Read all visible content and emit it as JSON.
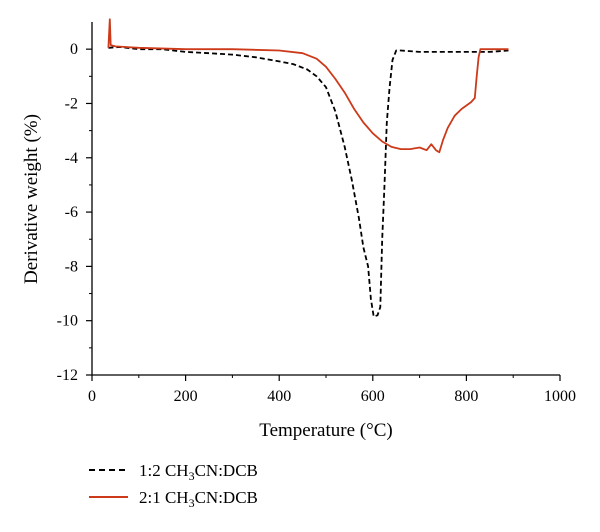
{
  "chart_data": {
    "type": "line",
    "title": "",
    "xlabel": "Temperature (°C)",
    "ylabel": "Derivative weight (%)",
    "xlim": [
      0,
      1000
    ],
    "ylim": [
      -12,
      1
    ],
    "xticks": [
      0,
      200,
      400,
      600,
      800,
      1000
    ],
    "yticks": [
      0,
      -2,
      -4,
      -6,
      -8,
      -10,
      -12
    ],
    "grid": false,
    "legend_position": "bottom-left, below plot",
    "series": [
      {
        "name": "1:2 CH3CN:DCB",
        "label_parts": [
          "1:2 CH",
          "3",
          "CN:DCB"
        ],
        "color": "#000000",
        "style": "dashed",
        "points": [
          [
            35,
            0.05
          ],
          [
            60,
            0.08
          ],
          [
            100,
            0.0
          ],
          [
            150,
            0.0
          ],
          [
            200,
            -0.1
          ],
          [
            250,
            -0.15
          ],
          [
            300,
            -0.2
          ],
          [
            350,
            -0.3
          ],
          [
            400,
            -0.45
          ],
          [
            430,
            -0.55
          ],
          [
            460,
            -0.75
          ],
          [
            480,
            -1.0
          ],
          [
            500,
            -1.4
          ],
          [
            520,
            -2.3
          ],
          [
            540,
            -3.6
          ],
          [
            555,
            -4.8
          ],
          [
            570,
            -6.2
          ],
          [
            580,
            -7.3
          ],
          [
            590,
            -8.0
          ],
          [
            596,
            -9.2
          ],
          [
            602,
            -9.85
          ],
          [
            610,
            -9.8
          ],
          [
            616,
            -9.5
          ],
          [
            620,
            -7.0
          ],
          [
            625,
            -5.0
          ],
          [
            630,
            -2.7
          ],
          [
            636,
            -1.4
          ],
          [
            642,
            -0.4
          ],
          [
            650,
            -0.05
          ],
          [
            660,
            -0.05
          ],
          [
            700,
            -0.1
          ],
          [
            750,
            -0.1
          ],
          [
            800,
            -0.1
          ],
          [
            850,
            -0.1
          ],
          [
            890,
            -0.05
          ]
        ]
      },
      {
        "name": "2:1 CH3CN:DCB",
        "label_parts": [
          "2:1 CH",
          "3",
          "CN:DCB"
        ],
        "color": "#cc3a1a",
        "style": "solid",
        "points": [
          [
            35,
            0.05
          ],
          [
            38,
            1.1
          ],
          [
            40,
            0.15
          ],
          [
            50,
            0.1
          ],
          [
            100,
            0.05
          ],
          [
            200,
            0.0
          ],
          [
            300,
            0.0
          ],
          [
            400,
            -0.05
          ],
          [
            450,
            -0.15
          ],
          [
            480,
            -0.35
          ],
          [
            500,
            -0.65
          ],
          [
            520,
            -1.1
          ],
          [
            540,
            -1.6
          ],
          [
            560,
            -2.2
          ],
          [
            580,
            -2.7
          ],
          [
            600,
            -3.1
          ],
          [
            620,
            -3.4
          ],
          [
            640,
            -3.6
          ],
          [
            660,
            -3.68
          ],
          [
            680,
            -3.68
          ],
          [
            700,
            -3.62
          ],
          [
            715,
            -3.72
          ],
          [
            725,
            -3.5
          ],
          [
            735,
            -3.72
          ],
          [
            742,
            -3.8
          ],
          [
            750,
            -3.35
          ],
          [
            760,
            -2.9
          ],
          [
            775,
            -2.45
          ],
          [
            790,
            -2.2
          ],
          [
            810,
            -1.95
          ],
          [
            818,
            -1.8
          ],
          [
            822,
            -1.0
          ],
          [
            826,
            -0.3
          ],
          [
            830,
            0.0
          ],
          [
            860,
            0.0
          ],
          [
            890,
            0.0
          ]
        ]
      }
    ]
  }
}
